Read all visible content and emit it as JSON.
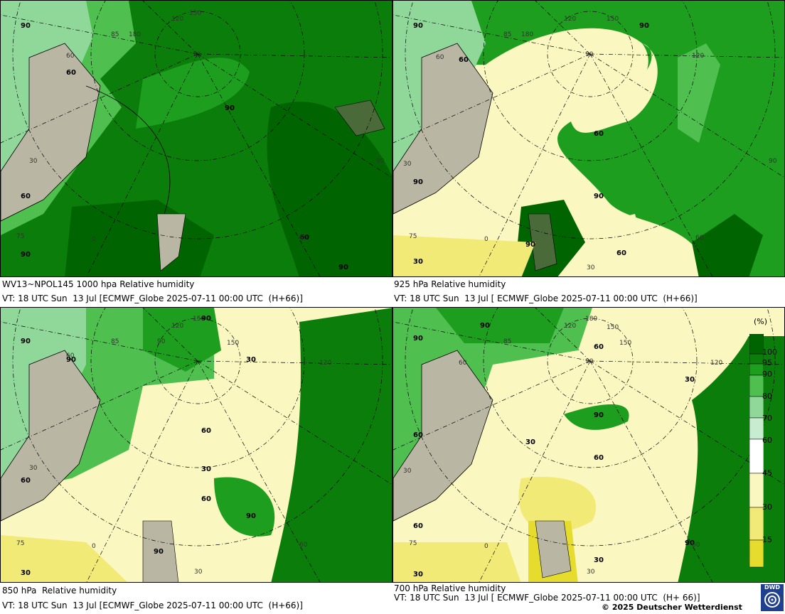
{
  "panels": [
    {
      "caption1": "WV13~NPOL145 1000 hpa Relative humidity",
      "caption2": "VT: 18 UTC Sun  13 Jul [ECMWF_Globe 2025-07-11 00:00 UTC  (H+66)]",
      "labels": [
        "90",
        "60",
        "90",
        "60",
        "90",
        "90",
        "60"
      ],
      "grid": [
        "180",
        "150",
        "120",
        "90",
        "85",
        "60",
        "30",
        "0",
        "75",
        "60",
        "90"
      ]
    },
    {
      "caption1": "925 hPa Relative humidity",
      "caption2": "VT: 18 UTC Sun  13 Jul [ ECMWF_Globe 2025-07-11 00:00 UTC  (H+66)]",
      "labels": [
        "90",
        "60",
        "90",
        "60",
        "90",
        "60",
        "30",
        "90",
        "90"
      ],
      "grid": [
        "180",
        "150",
        "120",
        "90",
        "85",
        "120",
        "60",
        "30",
        "0",
        "75",
        "60",
        "30",
        "90"
      ]
    },
    {
      "caption1": "850 hPa  Relative humidity",
      "caption2": "VT: 18 UTC Sun  13 Jul [ECMWF_Globe 2025-07-11 00:00 UTC  (H+66)]",
      "labels": [
        "90",
        "90",
        "90",
        "60",
        "30",
        "60",
        "30",
        "60",
        "90",
        "30",
        "90"
      ],
      "grid": [
        "150",
        "120",
        "90",
        "85",
        "60",
        "150",
        "120",
        "30",
        "0",
        "75",
        "60",
        "30"
      ]
    },
    {
      "caption1": "700 hPa Relative humidity",
      "caption2": "VT: 18 UTC Sun  13 Jul [ ECMWF_Globe 2025-07-11 00:00 UTC  (H+ 66)]",
      "labels": [
        "90",
        "60",
        "30",
        "90",
        "30",
        "60",
        "60",
        "90",
        "60",
        "30",
        "90",
        "30"
      ],
      "grid": [
        "180",
        "150",
        "120",
        "90",
        "85",
        "60",
        "150",
        "120",
        "30",
        "0",
        "75",
        "60",
        "30"
      ]
    }
  ],
  "legend": {
    "unit": "(%)",
    "ticks": [
      "100",
      "95",
      "90",
      "80",
      "70",
      "60",
      "45",
      "30",
      "15"
    ],
    "colors": [
      "#006400",
      "#0b7d0b",
      "#1e9e1e",
      "#4fbf4f",
      "#8fd89a",
      "#c8ecd0",
      "#ffffff",
      "#fbf7c0",
      "#f2ea77",
      "#e6dc2e"
    ]
  },
  "copyright": "© 2025 Deutscher Wetterdienst",
  "logo_text": "DWD"
}
